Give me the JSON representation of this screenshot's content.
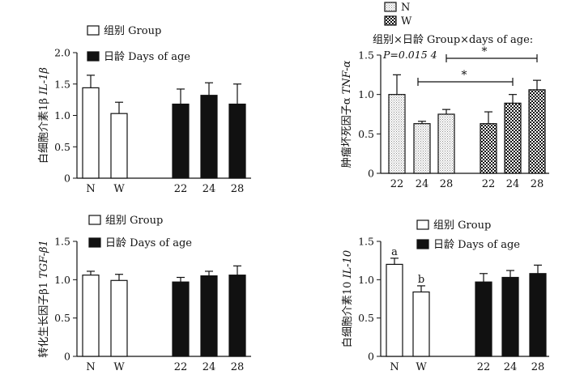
{
  "colors": {
    "white": "#ffffff",
    "black": "#111111",
    "dotted": "#d6d6d6",
    "checker": "#1a1a1a"
  },
  "chart_data": [
    {
      "type": "bar",
      "ylabel_zh": "白细胞介素1β",
      "ylabel_en": "IL-1β",
      "ylim": [
        0,
        2.0
      ],
      "yticks": [
        "0",
        "0.5",
        "1.0",
        "1.5",
        "2.0"
      ],
      "categories": [
        "N",
        "W",
        "22",
        "24",
        "28"
      ],
      "values": [
        1.44,
        1.03,
        1.18,
        1.32,
        1.18
      ],
      "errors": [
        0.2,
        0.18,
        0.24,
        0.2,
        0.32
      ],
      "legend": [
        {
          "zh": "组别",
          "en": "Group"
        },
        {
          "zh": "日龄",
          "en": "Days of age"
        }
      ]
    },
    {
      "type": "bar",
      "ylabel_zh": "肿瘤坏死因子α",
      "ylabel_en": "TNF-α",
      "ylim": [
        0,
        1.5
      ],
      "yticks": [
        "0",
        "0.5",
        "1.0",
        "1.5"
      ],
      "categories": [
        "22",
        "24",
        "28",
        "22",
        "24",
        "28"
      ],
      "series_membership": [
        "N",
        "N",
        "N",
        "W",
        "W",
        "W"
      ],
      "values": [
        1.0,
        0.63,
        0.75,
        0.63,
        0.89,
        1.06
      ],
      "errors": [
        0.25,
        0.03,
        0.06,
        0.15,
        0.11,
        0.12
      ],
      "legend": [
        {
          "label": "N"
        },
        {
          "label": "W"
        }
      ],
      "interaction_title": "组别×日龄  Group×days of age:",
      "p_value": "P=0.015 4",
      "significance": [
        "*",
        "*"
      ]
    },
    {
      "type": "bar",
      "ylabel_zh": "转化生长因子β1",
      "ylabel_en": "TGF-β1",
      "ylim": [
        0,
        1.5
      ],
      "yticks": [
        "0",
        "0.5",
        "1.0",
        "1.5"
      ],
      "categories": [
        "N",
        "W",
        "22",
        "24",
        "28"
      ],
      "values": [
        1.06,
        0.99,
        0.97,
        1.05,
        1.06
      ],
      "errors": [
        0.05,
        0.08,
        0.06,
        0.06,
        0.12
      ],
      "legend": [
        {
          "zh": "组别",
          "en": "Group"
        },
        {
          "zh": "日龄",
          "en": "Days of age"
        }
      ]
    },
    {
      "type": "bar",
      "ylabel_zh": "白细胞介素10",
      "ylabel_en": "IL-10",
      "ylim": [
        0,
        1.5
      ],
      "yticks": [
        "0",
        "0.5",
        "1.0",
        "1.5"
      ],
      "categories": [
        "N",
        "W",
        "22",
        "24",
        "28"
      ],
      "values": [
        1.2,
        0.84,
        0.97,
        1.03,
        1.08
      ],
      "errors": [
        0.08,
        0.08,
        0.11,
        0.09,
        0.11
      ],
      "letters": [
        "a",
        "b",
        "",
        "",
        ""
      ],
      "legend": [
        {
          "zh": "组别",
          "en": "Group"
        },
        {
          "zh": "日龄",
          "en": "Days of age"
        }
      ]
    }
  ]
}
